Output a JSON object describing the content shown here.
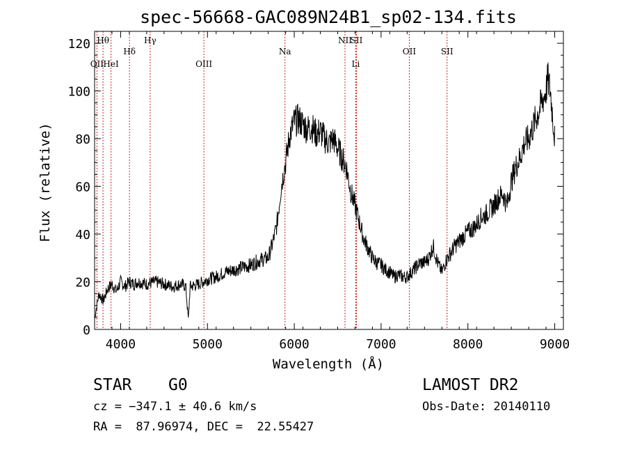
{
  "chart_data": {
    "type": "line",
    "title": "spec-56668-GAC089N24B1_sp02-134.fits",
    "xlabel": "Wavelength (Å)",
    "ylabel": "Flux (relative)",
    "xlim": [
      3700,
      9100
    ],
    "ylim": [
      0,
      125
    ],
    "x_ticks": [
      4000,
      5000,
      6000,
      7000,
      8000,
      9000
    ],
    "y_ticks": [
      0,
      20,
      40,
      60,
      80,
      100,
      120
    ],
    "x_tick_labels": [
      "4000",
      "5000",
      "6000",
      "7000",
      "8000",
      "9000"
    ],
    "y_tick_labels": [
      "0",
      "20",
      "40",
      "60",
      "80",
      "100",
      "120"
    ],
    "grid": false,
    "line_color": "#000000",
    "marker_color": "#cc2222",
    "spectrum": {
      "x": [
        3700,
        3750,
        3800,
        3850,
        3900,
        3950,
        4000,
        4050,
        4100,
        4150,
        4200,
        4300,
        4400,
        4500,
        4600,
        4700,
        4750,
        4780,
        4800,
        4900,
        5000,
        5100,
        5200,
        5300,
        5400,
        5500,
        5600,
        5700,
        5750,
        5800,
        5850,
        5900,
        5950,
        6000,
        6050,
        6100,
        6150,
        6200,
        6250,
        6300,
        6350,
        6400,
        6450,
        6500,
        6550,
        6600,
        6650,
        6700,
        6750,
        6800,
        6850,
        6900,
        6950,
        7000,
        7050,
        7100,
        7150,
        7200,
        7250,
        7300,
        7350,
        7400,
        7450,
        7500,
        7550,
        7600,
        7650,
        7700,
        7750,
        7800,
        7850,
        7900,
        7950,
        8000,
        8050,
        8100,
        8150,
        8200,
        8250,
        8300,
        8350,
        8400,
        8450,
        8500,
        8550,
        8600,
        8650,
        8700,
        8750,
        8800,
        8820,
        8850,
        8880,
        8900,
        8920,
        8950,
        8970,
        9000
      ],
      "y": [
        5,
        15,
        12,
        17,
        19,
        16,
        20,
        18,
        20,
        19,
        20,
        19,
        20,
        19,
        18,
        19,
        18,
        4,
        18,
        19,
        21,
        22,
        24,
        25,
        26,
        27,
        29,
        30,
        36,
        44,
        60,
        70,
        82,
        87,
        88,
        86,
        84,
        85,
        82,
        83,
        80,
        78,
        80,
        76,
        72,
        68,
        58,
        52,
        45,
        38,
        34,
        30,
        28,
        27,
        25,
        24,
        22,
        23,
        22,
        22,
        24,
        26,
        28,
        28,
        30,
        35,
        28,
        24,
        29,
        32,
        35,
        37,
        39,
        41,
        42,
        44,
        47,
        48,
        50,
        52,
        55,
        57,
        52,
        62,
        68,
        72,
        78,
        80,
        85,
        90,
        92,
        95,
        98,
        100,
        105,
        100,
        92,
        80
      ]
    },
    "line_markers": [
      {
        "label": "Hθ",
        "x": 3797,
        "row": 0
      },
      {
        "label": "OII",
        "x": 3727,
        "row": 2
      },
      {
        "label": "HeI",
        "x": 3889,
        "row": 2
      },
      {
        "label": "Hδ",
        "x": 4102,
        "row": 1
      },
      {
        "label": "Hγ",
        "x": 4340,
        "row": 0
      },
      {
        "label": "OIII",
        "x": 4959,
        "row": 2
      },
      {
        "label": "Na",
        "x": 5893,
        "row": 1
      },
      {
        "label": "NII",
        "x": 6584,
        "row": 0
      },
      {
        "label": "SII",
        "x": 6717,
        "row": 0
      },
      {
        "label": "Li",
        "x": 6708,
        "row": 2
      },
      {
        "label": "OII",
        "x": 7325,
        "row": 1
      },
      {
        "label": "SII",
        "x": 7760,
        "row": 1
      }
    ]
  },
  "info": {
    "object_class": "STAR",
    "subclass": "G0",
    "survey": "LAMOST DR2",
    "velocity": "cz = −347.1 ± 40.6 km/s",
    "obs_date": "Obs-Date: 20140110",
    "coords": "RA =  87.96974, DEC =  22.55427"
  }
}
